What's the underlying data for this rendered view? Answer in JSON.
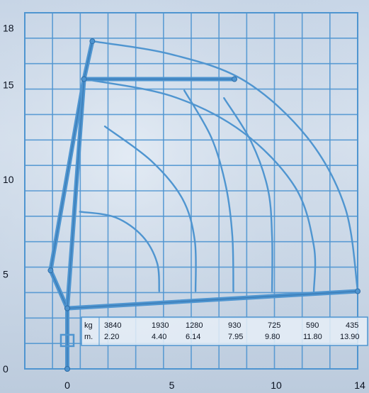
{
  "chart_data": {
    "type": "line",
    "title": "",
    "xlabel": "",
    "ylabel": "",
    "xlim": [
      0,
      14
    ],
    "ylim": [
      0,
      18
    ],
    "x_ticks": [
      "0",
      "5",
      "10",
      "14"
    ],
    "y_ticks": [
      "0",
      "5",
      "10",
      "15",
      "18"
    ],
    "grid": true,
    "colors": {
      "line": "#4f95d0",
      "text": "#0b1220",
      "table_bg": "#e6eef7"
    },
    "boom_positions": [
      {
        "points": [
          [
            0,
            0
          ],
          [
            0,
            3.2
          ],
          [
            13.9,
            4.1
          ]
        ]
      },
      {
        "points": [
          [
            0,
            0
          ],
          [
            0,
            3.2
          ],
          [
            -0.8,
            5.2
          ],
          [
            0.8,
            15.3
          ],
          [
            1.2,
            17.3
          ]
        ]
      },
      {
        "points": [
          [
            0,
            3.2
          ],
          [
            0.8,
            15.3
          ],
          [
            8,
            15.3
          ]
        ]
      }
    ],
    "capacity_arcs": [
      {
        "points": [
          [
            1.2,
            17.3
          ],
          [
            5,
            16.6
          ],
          [
            8.5,
            15.2
          ],
          [
            11.5,
            12.2
          ],
          [
            13.3,
            8.5
          ],
          [
            13.9,
            4.1
          ]
        ]
      },
      {
        "points": [
          [
            0.8,
            15.3
          ],
          [
            5,
            14.4
          ],
          [
            8.4,
            12.5
          ],
          [
            10.9,
            9.6
          ],
          [
            11.8,
            6.5
          ],
          [
            11.8,
            4.1
          ]
        ]
      },
      {
        "points": [
          [
            7.5,
            14.3
          ],
          [
            8.8,
            12.0
          ],
          [
            9.6,
            9.5
          ],
          [
            9.8,
            7.0
          ],
          [
            9.8,
            4.1
          ]
        ]
      },
      {
        "points": [
          [
            5.6,
            14.7
          ],
          [
            6.9,
            12.2
          ],
          [
            7.6,
            9.6
          ],
          [
            7.9,
            7.0
          ],
          [
            7.95,
            4.1
          ]
        ]
      },
      {
        "points": [
          [
            1.8,
            12.8
          ],
          [
            4.0,
            11.0
          ],
          [
            5.5,
            9.0
          ],
          [
            6.1,
            6.8
          ],
          [
            6.14,
            4.1
          ]
        ]
      },
      {
        "points": [
          [
            0.6,
            8.3
          ],
          [
            2.3,
            8.0
          ],
          [
            3.6,
            7.0
          ],
          [
            4.3,
            5.6
          ],
          [
            4.4,
            4.1
          ]
        ]
      }
    ],
    "table": {
      "rows": [
        {
          "unit": "kg",
          "values": [
            "3840",
            "1930",
            "1280",
            "930",
            "725",
            "590",
            "435"
          ]
        },
        {
          "unit": "m.",
          "values": [
            "2.20",
            "4.40",
            "6.14",
            "7.95",
            "9.80",
            "11.80",
            "13.90"
          ]
        }
      ]
    }
  }
}
